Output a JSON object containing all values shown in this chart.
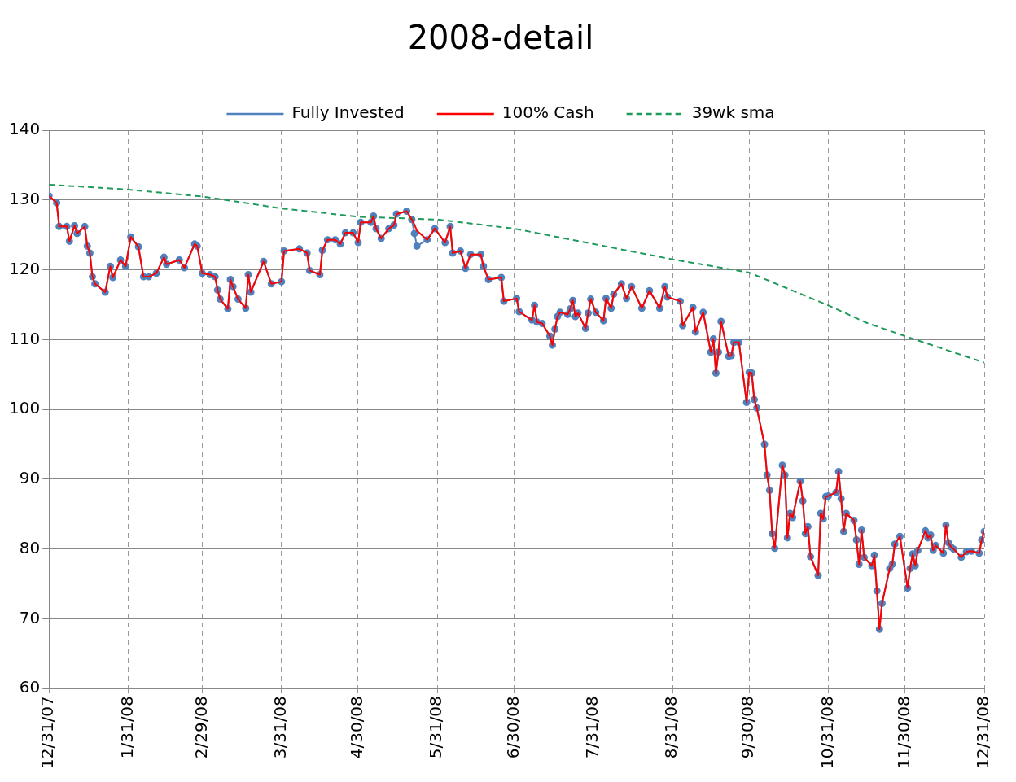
{
  "chart_data": {
    "type": "line",
    "title": "2008-detail",
    "legend": "top",
    "grid": true,
    "xlim": [
      "2007-12-31",
      "2008-12-31"
    ],
    "xticks": [
      {
        "value": "2007-12-31",
        "label": "12/31/07"
      },
      {
        "value": "2008-01-31",
        "label": "1/31/08"
      },
      {
        "value": "2008-02-29",
        "label": "2/29/08"
      },
      {
        "value": "2008-03-31",
        "label": "3/31/08"
      },
      {
        "value": "2008-04-30",
        "label": "4/30/08"
      },
      {
        "value": "2008-05-31",
        "label": "5/31/08"
      },
      {
        "value": "2008-06-30",
        "label": "6/30/08"
      },
      {
        "value": "2008-07-31",
        "label": "7/31/08"
      },
      {
        "value": "2008-08-31",
        "label": "8/31/08"
      },
      {
        "value": "2008-09-30",
        "label": "9/30/08"
      },
      {
        "value": "2008-10-31",
        "label": "10/31/08"
      },
      {
        "value": "2008-11-30",
        "label": "11/30/08"
      },
      {
        "value": "2008-12-31",
        "label": "12/31/08"
      }
    ],
    "ylim": [
      60,
      140
    ],
    "yticks": [
      60,
      70,
      80,
      90,
      100,
      110,
      120,
      130,
      140
    ],
    "x": [
      "2007-12-31",
      "2008-01-03",
      "2008-01-04",
      "2008-01-07",
      "2008-01-08",
      "2008-01-10",
      "2008-01-11",
      "2008-01-14",
      "2008-01-15",
      "2008-01-16",
      "2008-01-17",
      "2008-01-18",
      "2008-01-22",
      "2008-01-24",
      "2008-01-25",
      "2008-01-28",
      "2008-01-30",
      "2008-02-01",
      "2008-02-04",
      "2008-02-06",
      "2008-02-08",
      "2008-02-11",
      "2008-02-14",
      "2008-02-15",
      "2008-02-20",
      "2008-02-22",
      "2008-02-26",
      "2008-02-27",
      "2008-02-29",
      "2008-03-03",
      "2008-03-05",
      "2008-03-06",
      "2008-03-07",
      "2008-03-10",
      "2008-03-11",
      "2008-03-12",
      "2008-03-14",
      "2008-03-17",
      "2008-03-18",
      "2008-03-19",
      "2008-03-24",
      "2008-03-27",
      "2008-03-31",
      "2008-04-01",
      "2008-04-07",
      "2008-04-10",
      "2008-04-11",
      "2008-04-15",
      "2008-04-16",
      "2008-04-18",
      "2008-04-21",
      "2008-04-23",
      "2008-04-25",
      "2008-04-28",
      "2008-04-30",
      "2008-05-01",
      "2008-05-05",
      "2008-05-06",
      "2008-05-07",
      "2008-05-09",
      "2008-05-12",
      "2008-05-14",
      "2008-05-15",
      "2008-05-19",
      "2008-05-21",
      "2008-05-22",
      "2008-05-23",
      "2008-05-27",
      "2008-05-30",
      "2008-06-03",
      "2008-06-05",
      "2008-06-06",
      "2008-06-09",
      "2008-06-11",
      "2008-06-13",
      "2008-06-17",
      "2008-06-18",
      "2008-06-20",
      "2008-06-25",
      "2008-06-26",
      "2008-07-01",
      "2008-07-02",
      "2008-07-07",
      "2008-07-08",
      "2008-07-09",
      "2008-07-11",
      "2008-07-14",
      "2008-07-15",
      "2008-07-16",
      "2008-07-17",
      "2008-07-18",
      "2008-07-21",
      "2008-07-22",
      "2008-07-23",
      "2008-07-24",
      "2008-07-25",
      "2008-07-28",
      "2008-07-29",
      "2008-07-30",
      "2008-08-01",
      "2008-08-04",
      "2008-08-05",
      "2008-08-07",
      "2008-08-08",
      "2008-08-11",
      "2008-08-13",
      "2008-08-15",
      "2008-08-19",
      "2008-08-22",
      "2008-08-26",
      "2008-08-28",
      "2008-08-29",
      "2008-09-03",
      "2008-09-04",
      "2008-09-08",
      "2008-09-09",
      "2008-09-12",
      "2008-09-15",
      "2008-09-16",
      "2008-09-17",
      "2008-09-18",
      "2008-09-19",
      "2008-09-22",
      "2008-09-23",
      "2008-09-24",
      "2008-09-26",
      "2008-09-29",
      "2008-09-30",
      "2008-10-01",
      "2008-10-02",
      "2008-10-03",
      "2008-10-06",
      "2008-10-07",
      "2008-10-08",
      "2008-10-09",
      "2008-10-10",
      "2008-10-13",
      "2008-10-14",
      "2008-10-15",
      "2008-10-16",
      "2008-10-17",
      "2008-10-20",
      "2008-10-21",
      "2008-10-22",
      "2008-10-23",
      "2008-10-24",
      "2008-10-27",
      "2008-10-28",
      "2008-10-29",
      "2008-10-30",
      "2008-10-31",
      "2008-11-03",
      "2008-11-04",
      "2008-11-05",
      "2008-11-06",
      "2008-11-07",
      "2008-11-10",
      "2008-11-11",
      "2008-11-12",
      "2008-11-13",
      "2008-11-14",
      "2008-11-17",
      "2008-11-18",
      "2008-11-19",
      "2008-11-20",
      "2008-11-21",
      "2008-11-24",
      "2008-11-25",
      "2008-11-26",
      "2008-11-28",
      "2008-12-01",
      "2008-12-02",
      "2008-12-03",
      "2008-12-04",
      "2008-12-05",
      "2008-12-08",
      "2008-12-09",
      "2008-12-10",
      "2008-12-11",
      "2008-12-12",
      "2008-12-15",
      "2008-12-16",
      "2008-12-17",
      "2008-12-18",
      "2008-12-19",
      "2008-12-22",
      "2008-12-24",
      "2008-12-26",
      "2008-12-29",
      "2008-12-30",
      "2008-12-31"
    ],
    "series": [
      {
        "name": "Fully Invested",
        "color": "#4f81bd",
        "marker": "circle",
        "values": [
          130.6,
          129.6,
          126.2,
          126.2,
          124.1,
          126.3,
          125.2,
          126.2,
          123.4,
          122.4,
          119,
          118,
          116.8,
          120.5,
          118.9,
          121.4,
          120.5,
          124.7,
          123.3,
          119,
          119,
          119.5,
          121.8,
          120.8,
          121.4,
          120.3,
          123.7,
          123.4,
          119.5,
          119.3,
          119,
          117.1,
          115.8,
          114.4,
          118.6,
          117.6,
          115.8,
          114.5,
          119.3,
          116.8,
          121.2,
          118,
          118.3,
          122.7,
          123,
          122.4,
          119.9,
          119.3,
          122.8,
          124.3,
          124.3,
          123.7,
          125.3,
          125.3,
          123.9,
          126.8,
          126.8,
          127.7,
          125.9,
          124.5,
          125.9,
          126.4,
          128,
          128.4,
          127.2,
          125.2,
          123.4,
          124.3,
          125.9,
          123.9,
          126.2,
          122.4,
          122.7,
          120.2,
          122.2,
          122.2,
          120.5,
          118.6,
          118.9,
          115.5,
          115.9,
          114,
          112.8,
          114.9,
          112.5,
          112.3,
          110.5,
          109.2,
          111.5,
          113.3,
          113.9,
          113.6,
          114.4,
          115.6,
          113.3,
          113.8,
          111.6,
          113.8,
          115.8,
          113.9,
          112.7,
          115.9,
          114.5,
          116.5,
          118,
          115.9,
          117.6,
          114.5,
          117,
          114.5,
          117.6,
          116.1,
          115.5,
          112,
          114.6,
          111.1,
          113.9,
          108.2,
          110.1,
          105.2,
          108.2,
          112.6,
          107.6,
          107.7,
          109.6,
          109.6,
          101,
          105.3,
          105.2,
          101.4,
          100.2,
          95,
          90.6,
          88.4,
          82.2,
          80.1,
          92,
          90.6,
          81.6,
          85.1,
          84.5,
          89.7,
          86.9,
          82.2,
          83.2,
          78.9,
          76.2,
          85.1,
          84.3,
          87.5,
          87.6,
          88.1,
          91.1,
          87.2,
          82.5,
          85.1,
          84.1,
          81.3,
          77.8,
          82.7,
          78.8,
          77.6,
          79.1,
          74,
          68.5,
          72.2,
          77.2,
          77.8,
          80.7,
          81.8,
          74.4,
          77.2,
          79.3,
          77.6,
          79.8,
          82.6,
          81.6,
          82,
          79.8,
          80.5,
          79.4,
          83.4,
          80.9,
          80.3,
          80,
          78.8,
          79.6,
          79.7,
          79.4,
          81.3,
          82.5
        ]
      },
      {
        "name": "100% Cash",
        "color": "#ff0000",
        "marker": "none",
        "values": [
          130.6,
          129.6,
          126.2,
          126.2,
          124.1,
          126.3,
          125.2,
          126.2,
          123.4,
          122.4,
          119,
          118,
          116.8,
          120.5,
          118.9,
          121.4,
          120.5,
          124.7,
          123.3,
          119,
          119,
          119.5,
          121.8,
          120.8,
          121.4,
          120.3,
          123.7,
          123.4,
          119.5,
          119.3,
          119,
          117.1,
          115.8,
          114.4,
          118.6,
          117.6,
          115.8,
          114.5,
          119.3,
          116.8,
          121.2,
          118,
          118.3,
          122.7,
          123,
          122.4,
          119.9,
          119.3,
          122.8,
          124.3,
          124.3,
          123.7,
          125.3,
          125.3,
          123.9,
          126.8,
          126.8,
          127.7,
          125.9,
          124.5,
          125.9,
          126.4,
          128,
          128.4,
          127.2,
          126.5,
          125.6,
          124.3,
          125.9,
          123.9,
          126.2,
          122.4,
          122.7,
          120.2,
          122.2,
          122.2,
          120.5,
          118.6,
          118.9,
          115.5,
          115.9,
          114,
          112.8,
          114.9,
          112.5,
          112.3,
          110.5,
          109.2,
          111.5,
          113.3,
          113.9,
          113.6,
          114.4,
          115.6,
          113.3,
          113.8,
          111.6,
          113.8,
          115.8,
          113.9,
          112.7,
          115.9,
          114.5,
          116.5,
          118,
          115.9,
          117.6,
          114.5,
          117,
          114.5,
          117.6,
          116.1,
          115.5,
          112,
          114.6,
          111.1,
          113.9,
          108.2,
          110.1,
          105.2,
          108.2,
          112.6,
          107.6,
          107.7,
          109.6,
          109.6,
          101,
          105.3,
          105.2,
          101.4,
          100.2,
          95,
          90.6,
          88.4,
          82.2,
          80.1,
          92,
          90.6,
          81.6,
          85.1,
          84.5,
          89.7,
          86.9,
          82.2,
          83.2,
          78.9,
          76.2,
          85.1,
          84.3,
          87.5,
          87.6,
          88.1,
          91.1,
          87.2,
          82.5,
          85.1,
          84.1,
          81.3,
          77.8,
          82.7,
          78.8,
          77.6,
          79.1,
          74,
          68.5,
          72.2,
          77.2,
          77.8,
          80.7,
          81.8,
          74.4,
          77.2,
          79.3,
          77.6,
          79.8,
          82.6,
          81.6,
          82,
          79.8,
          80.5,
          79.4,
          83.4,
          80.9,
          80.3,
          80,
          78.8,
          79.6,
          79.7,
          79.4,
          81.3,
          82.5
        ]
      },
      {
        "name": "39wk sma",
        "color": "#1e9a5a",
        "marker": "none",
        "line_style": "dashed",
        "x": [
          "2007-12-31",
          "2008-01-31",
          "2008-02-29",
          "2008-03-31",
          "2008-04-30",
          "2008-05-31",
          "2008-06-30",
          "2008-07-31",
          "2008-08-31",
          "2008-09-30",
          "2008-10-31",
          "2008-11-15",
          "2008-11-30",
          "2008-12-31"
        ],
        "values": [
          132.2,
          131.5,
          130.5,
          128.8,
          127.6,
          127.2,
          125.9,
          123.7,
          121.5,
          119.6,
          114.9,
          112.4,
          110.5,
          106.7
        ]
      }
    ]
  }
}
